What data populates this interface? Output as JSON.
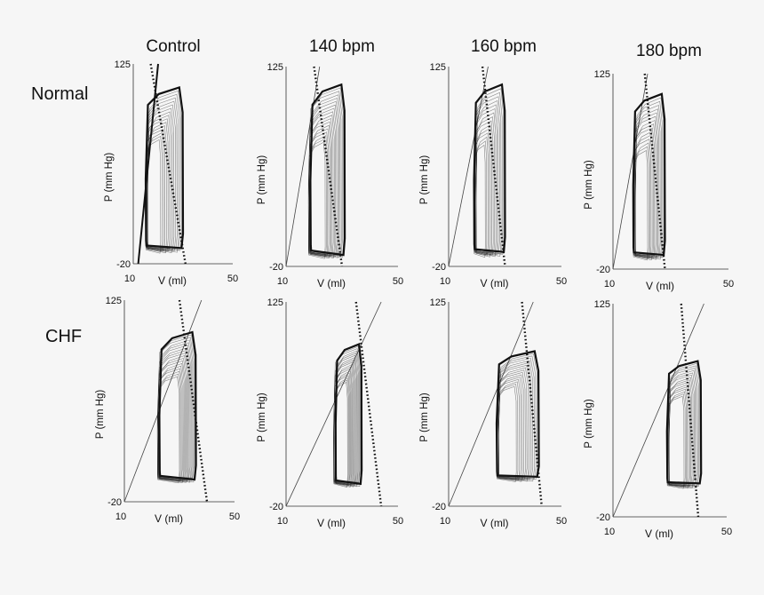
{
  "figure": {
    "columns": [
      "Control",
      "140 bpm",
      "160 bpm",
      "180 bpm"
    ],
    "rows": [
      "Normal",
      "CHF"
    ],
    "x_label": "V (ml)",
    "y_label": "P (mm Hg)",
    "x_ticks": [
      "10",
      "50"
    ],
    "y_ticks": [
      "125",
      "-20"
    ]
  },
  "chart_data": [
    {
      "type": "line",
      "row": "Normal",
      "column": "Control",
      "title": "Control",
      "xlabel": "V (ml)",
      "ylabel": "P (mm Hg)",
      "xlim": [
        10,
        50
      ],
      "ylim": [
        -20,
        125
      ],
      "loops": {
        "count": 16,
        "outer": {
          "v_min": 15,
          "v_max": 30,
          "p_min": -14,
          "p_max": 108
        },
        "inner": {
          "v_min": 15,
          "v_max": 21,
          "p_min": -14,
          "p_max": 70
        }
      },
      "espvr": {
        "v0": 12,
        "v_at_125": 20,
        "bold": true
      },
      "ees_line": {
        "from": [
          17,
          125
        ],
        "to": [
          31,
          -20
        ]
      }
    },
    {
      "type": "line",
      "row": "Normal",
      "column": "140 bpm",
      "title": "140 bpm",
      "xlabel": "V (ml)",
      "ylabel": "P (mm Hg)",
      "xlim": [
        10,
        50
      ],
      "ylim": [
        -20,
        125
      ],
      "loops": {
        "count": 18,
        "outer": {
          "v_min": 18,
          "v_max": 31,
          "p_min": -16,
          "p_max": 112
        },
        "inner": {
          "v_min": 18,
          "v_max": 24,
          "p_min": -16,
          "p_max": 70
        }
      },
      "espvr": {
        "v0": 10,
        "v_at_125": 22,
        "bold": false
      },
      "ees_line": {
        "from": [
          20,
          125
        ],
        "to": [
          30,
          -20
        ]
      }
    },
    {
      "type": "line",
      "row": "Normal",
      "column": "160 bpm",
      "title": "160 bpm",
      "xlabel": "V (ml)",
      "ylabel": "P (mm Hg)",
      "xlim": [
        10,
        50
      ],
      "ylim": [
        -20,
        125
      ],
      "loops": {
        "count": 16,
        "outer": {
          "v_min": 19,
          "v_max": 30,
          "p_min": -15,
          "p_max": 112
        },
        "inner": {
          "v_min": 19,
          "v_max": 23,
          "p_min": -15,
          "p_max": 68
        }
      },
      "espvr": {
        "v0": 10,
        "v_at_125": 24,
        "bold": false
      },
      "ees_line": {
        "from": [
          22,
          125
        ],
        "to": [
          30,
          -20
        ]
      }
    },
    {
      "type": "line",
      "row": "Normal",
      "column": "180 bpm",
      "title": "180 bpm",
      "xlabel": "V (ml)",
      "ylabel": "P (mm Hg)",
      "xlim": [
        10,
        50
      ],
      "ylim": [
        -20,
        125
      ],
      "loops": {
        "count": 16,
        "outer": {
          "v_min": 17,
          "v_max": 28,
          "p_min": -15,
          "p_max": 110
        },
        "inner": {
          "v_min": 17,
          "v_max": 22,
          "p_min": -15,
          "p_max": 68
        }
      },
      "espvr": {
        "v0": 10,
        "v_at_125": 22,
        "bold": false
      },
      "ees_line": {
        "from": [
          21,
          125
        ],
        "to": [
          28,
          -20
        ]
      }
    },
    {
      "type": "line",
      "row": "CHF",
      "column": "Control",
      "title": "",
      "xlabel": "V (ml)",
      "ylabel": "P (mm Hg)",
      "xlim": [
        10,
        50
      ],
      "ylim": [
        -20,
        125
      ],
      "loops": {
        "count": 18,
        "outer": {
          "v_min": 22,
          "v_max": 36,
          "p_min": -8,
          "p_max": 102
        },
        "inner": {
          "v_min": 22,
          "v_max": 30,
          "p_min": -8,
          "p_max": 70
        }
      },
      "espvr": {
        "v0": 10,
        "v_at_125": 38,
        "bold": false
      },
      "ees_line": {
        "from": [
          30,
          125
        ],
        "to": [
          40,
          -20
        ]
      }
    },
    {
      "type": "line",
      "row": "CHF",
      "column": "140 bpm",
      "title": "",
      "xlabel": "V (ml)",
      "ylabel": "P (mm Hg)",
      "xlim": [
        10,
        50
      ],
      "ylim": [
        -20,
        125
      ],
      "loops": {
        "count": 18,
        "outer": {
          "v_min": 27,
          "v_max": 37,
          "p_min": -8,
          "p_max": 95
        },
        "inner": {
          "v_min": 27,
          "v_max": 32,
          "p_min": -8,
          "p_max": 68
        }
      },
      "espvr": {
        "v0": 10,
        "v_at_125": 44,
        "bold": false
      },
      "ees_line": {
        "from": [
          35,
          125
        ],
        "to": [
          44,
          -20
        ]
      }
    },
    {
      "type": "line",
      "row": "CHF",
      "column": "160 bpm",
      "title": "",
      "xlabel": "V (ml)",
      "ylabel": "P (mm Hg)",
      "xlim": [
        10,
        50
      ],
      "ylim": [
        -20,
        125
      ],
      "loops": {
        "count": 16,
        "outer": {
          "v_min": 27,
          "v_max": 42,
          "p_min": -4,
          "p_max": 90
        },
        "inner": {
          "v_min": 27,
          "v_max": 34,
          "p_min": -4,
          "p_max": 65
        }
      },
      "espvr": {
        "v0": 10,
        "v_at_125": 40,
        "bold": false
      },
      "ees_line": {
        "from": [
          36,
          125
        ],
        "to": [
          43,
          -20
        ]
      }
    },
    {
      "type": "line",
      "row": "CHF",
      "column": "180 bpm",
      "title": "",
      "xlabel": "V (ml)",
      "ylabel": "P (mm Hg)",
      "xlim": [
        10,
        50
      ],
      "ylim": [
        -20,
        125
      ],
      "loops": {
        "count": 16,
        "outer": {
          "v_min": 29,
          "v_max": 41,
          "p_min": -2,
          "p_max": 86
        },
        "inner": {
          "v_min": 29,
          "v_max": 35,
          "p_min": -2,
          "p_max": 62
        }
      },
      "espvr": {
        "v0": 10,
        "v_at_125": 42,
        "bold": false
      },
      "ees_line": {
        "from": [
          34,
          125
        ],
        "to": [
          40,
          -20
        ]
      }
    }
  ]
}
